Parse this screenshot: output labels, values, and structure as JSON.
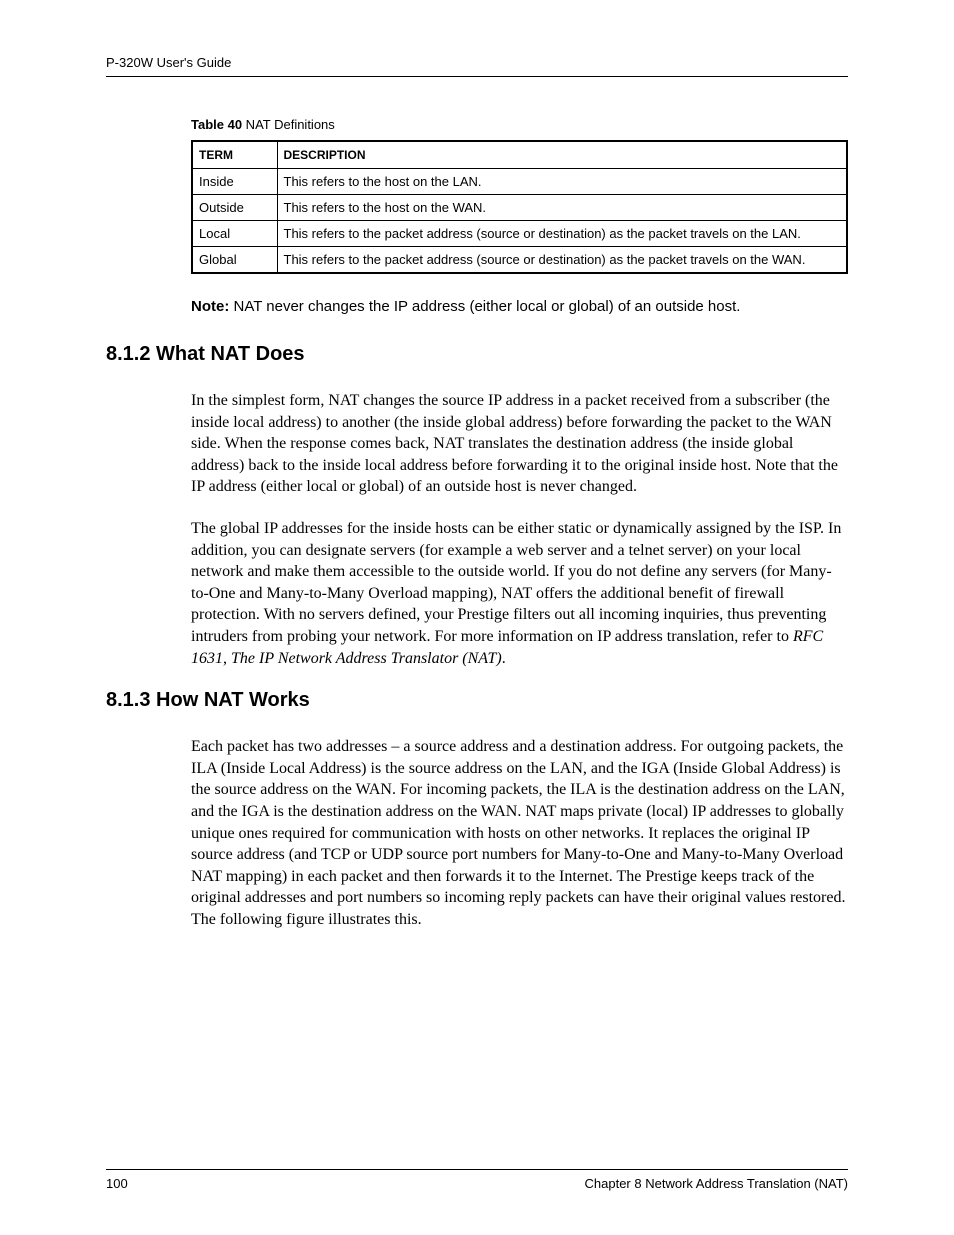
{
  "header": {
    "title": "P-320W User's Guide"
  },
  "table": {
    "caption_label": "Table 40",
    "caption_text": "   NAT Definitions",
    "columns": [
      "TERM",
      "DESCRIPTION"
    ],
    "rows": [
      [
        "Inside",
        "This refers to the host on the LAN."
      ],
      [
        "Outside",
        "This refers to the host on the WAN."
      ],
      [
        "Local",
        "This refers to the packet address (source or destination) as the packet travels on the LAN."
      ],
      [
        "Global",
        "This refers to the packet address (source or destination) as the packet travels on the WAN."
      ]
    ]
  },
  "note": {
    "label": "Note:",
    "text": " NAT never changes the IP address (either local or global) of an outside host."
  },
  "section1": {
    "heading": "8.1.2  What NAT Does",
    "para1": "In the simplest form, NAT changes the source IP address in a packet received from a subscriber (the inside local address) to another (the inside global address) before forwarding the packet to the WAN side. When the response comes back, NAT translates the destination address (the inside global address) back to the inside local address before forwarding it to the original inside host. Note that the IP address (either local or global) of an outside host is never changed.",
    "para2_pre": "The global IP addresses for the inside hosts can be either static or dynamically assigned by the ISP. In addition, you can designate servers (for example a web server and a telnet server) on your local network and make them accessible to the outside world. If you do not define any servers (for Many-to-One and Many-to-Many Overload mapping), NAT offers the additional benefit of firewall protection. With no servers defined, your Prestige filters out all incoming inquiries, thus preventing intruders from probing your network. For more information on IP address translation, refer to ",
    "para2_italic1": "RFC 1631",
    "para2_mid": ", ",
    "para2_italic2": "The IP Network Address Translator (NAT)",
    "para2_post": "."
  },
  "section2": {
    "heading": "8.1.3  How NAT Works",
    "para1": "Each packet has two addresses – a source address and a destination address. For outgoing packets, the ILA (Inside Local Address) is the source address on the LAN, and the IGA (Inside Global Address) is the source address on the WAN. For incoming packets, the ILA is the destination address on the LAN, and the IGA is the destination address on the WAN. NAT maps private (local) IP addresses to globally unique ones required for communication with hosts on other networks. It replaces the original IP source address (and TCP or UDP source port numbers for Many-to-One and Many-to-Many Overload NAT mapping) in each packet and then forwards it to the Internet. The Prestige keeps track of the original addresses and port numbers so incoming reply packets can have their original values restored. The following figure illustrates this."
  },
  "footer": {
    "page_number": "100",
    "chapter": "Chapter 8 Network Address Translation (NAT)"
  }
}
